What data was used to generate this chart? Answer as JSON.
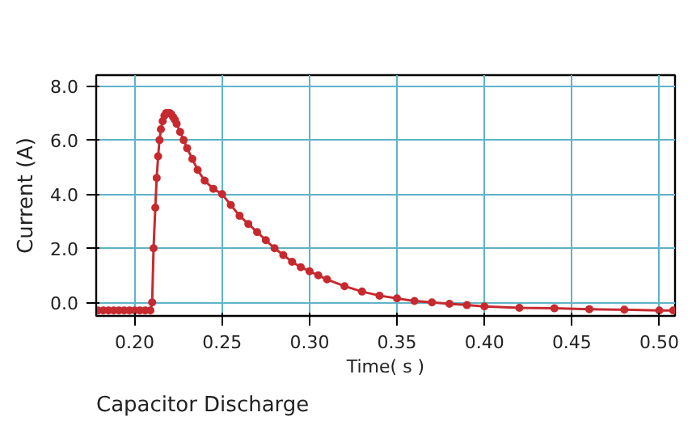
{
  "chart_data": {
    "type": "line",
    "title": "Capacitor Discharge",
    "xlabel": "Time( s )",
    "ylabel": "Current (A)",
    "x": [
      0.179,
      0.182,
      0.185,
      0.188,
      0.191,
      0.194,
      0.197,
      0.2,
      0.203,
      0.206,
      0.209,
      0.21,
      0.2108,
      0.2118,
      0.2126,
      0.2134,
      0.2142,
      0.215,
      0.216,
      0.217,
      0.218,
      0.219,
      0.22,
      0.221,
      0.222,
      0.223,
      0.224,
      0.226,
      0.228,
      0.23,
      0.233,
      0.236,
      0.24,
      0.245,
      0.25,
      0.255,
      0.26,
      0.265,
      0.27,
      0.275,
      0.28,
      0.285,
      0.29,
      0.295,
      0.3,
      0.305,
      0.31,
      0.32,
      0.33,
      0.34,
      0.35,
      0.36,
      0.37,
      0.38,
      0.39,
      0.4,
      0.42,
      0.44,
      0.46,
      0.48,
      0.5,
      0.508
    ],
    "series": [
      {
        "color": "#c62a2f",
        "values": [
          -0.3,
          -0.3,
          -0.3,
          -0.3,
          -0.3,
          -0.3,
          -0.3,
          -0.3,
          -0.3,
          -0.3,
          -0.3,
          0.0,
          2.0,
          3.5,
          4.6,
          5.4,
          6.0,
          6.4,
          6.7,
          6.9,
          7.0,
          7.0,
          7.0,
          6.95,
          6.85,
          6.75,
          6.6,
          6.3,
          6.0,
          5.7,
          5.3,
          4.9,
          4.5,
          4.2,
          4.0,
          3.6,
          3.2,
          2.9,
          2.6,
          2.3,
          2.0,
          1.75,
          1.5,
          1.3,
          1.15,
          1.0,
          0.85,
          0.6,
          0.4,
          0.25,
          0.15,
          0.05,
          0.0,
          -0.05,
          -0.1,
          -0.15,
          -0.2,
          -0.22,
          -0.25,
          -0.27,
          -0.3,
          -0.3
        ]
      }
    ],
    "xlim": [
      0.178,
      0.509
    ],
    "ylim": [
      -0.5,
      8.4
    ],
    "xticks": [
      {
        "value": 0.2,
        "label": "0.20"
      },
      {
        "value": 0.25,
        "label": "0.25"
      },
      {
        "value": 0.3,
        "label": "0.30"
      },
      {
        "value": 0.35,
        "label": "0.35"
      },
      {
        "value": 0.4,
        "label": "0.40"
      },
      {
        "value": 0.45,
        "label": "0.45"
      },
      {
        "value": 0.5,
        "label": "0.50"
      }
    ],
    "yticks": [
      {
        "value": 0,
        "label": "0.0"
      },
      {
        "value": 2,
        "label": "2.0"
      },
      {
        "value": 4,
        "label": "4.0"
      },
      {
        "value": 6,
        "label": "6.0"
      },
      {
        "value": 8,
        "label": "8.0"
      }
    ],
    "grid": true,
    "marker": "circle",
    "line_style": "solid"
  }
}
